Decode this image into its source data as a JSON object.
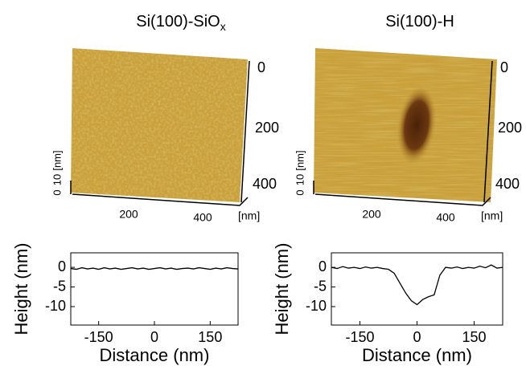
{
  "images": [
    {
      "title": "Si(100)-SiO",
      "title_subscript": "x",
      "z_ticks": [
        "0",
        "10"
      ],
      "z_unit": "[nm]",
      "y_ticks": [
        "0",
        "200",
        "400"
      ],
      "x_ticks": [
        "200",
        "400"
      ],
      "x_unit": "[nm]"
    },
    {
      "title": "Si(100)-H",
      "z_ticks": [
        "0",
        "10"
      ],
      "z_unit": "[nm]",
      "y_ticks": [
        "0",
        "200",
        "400"
      ],
      "x_ticks": [
        "200",
        "400"
      ],
      "x_unit": "[nm]"
    }
  ],
  "chart_data": [
    {
      "type": "line",
      "xlabel": "Distance (nm)",
      "ylabel": "Height (nm)",
      "x": [
        -225,
        -210,
        -195,
        -180,
        -165,
        -150,
        -135,
        -120,
        -105,
        -90,
        -75,
        -60,
        -45,
        -30,
        -15,
        0,
        15,
        30,
        45,
        60,
        75,
        90,
        105,
        120,
        135,
        150,
        165,
        180,
        195,
        210,
        225
      ],
      "series": [
        {
          "color": "#000000",
          "values": [
            -0.3,
            -0.5,
            -0.1,
            -0.4,
            -0.2,
            -0.5,
            -0.1,
            -0.4,
            -0.2,
            -0.5,
            -0.3,
            -0.1,
            -0.4,
            -0.2,
            -0.5,
            -0.3,
            -0.1,
            -0.4,
            -0.2,
            -0.5,
            -0.3,
            -0.2,
            -0.4,
            -0.1,
            -0.3,
            -0.5,
            -0.2,
            -0.4,
            -0.1,
            -0.3,
            -0.4
          ]
        }
      ],
      "xlim": [
        -225,
        225
      ],
      "ylim": [
        -14.7,
        3.7
      ],
      "xticks": [
        -150,
        0,
        150
      ],
      "yticks": [
        0,
        -5,
        -10
      ]
    },
    {
      "type": "line",
      "xlabel": "Distance (nm)",
      "ylabel": "Height (nm)",
      "x": [
        -225,
        -210,
        -195,
        -180,
        -165,
        -150,
        -135,
        -120,
        -105,
        -90,
        -75,
        -60,
        -45,
        -30,
        -15,
        0,
        15,
        30,
        45,
        60,
        75,
        90,
        105,
        120,
        135,
        150,
        165,
        180,
        195,
        210,
        225
      ],
      "series": [
        {
          "color": "#000000",
          "values": [
            0,
            -0.3,
            0.2,
            -0.2,
            0,
            -0.3,
            0.1,
            -0.2,
            0,
            -0.3,
            -0.5,
            -1.5,
            -4,
            -6.5,
            -8.5,
            -9.5,
            -8.2,
            -7.5,
            -7,
            -2,
            0,
            -0.2,
            0.1,
            -0.3,
            0,
            -0.2,
            0.3,
            -0.1,
            0.6,
            -0.2,
            0
          ]
        }
      ],
      "xlim": [
        -225,
        225
      ],
      "ylim": [
        -14.7,
        3.7
      ],
      "xticks": [
        -150,
        0,
        150
      ],
      "yticks": [
        0,
        -5,
        -10
      ]
    }
  ]
}
